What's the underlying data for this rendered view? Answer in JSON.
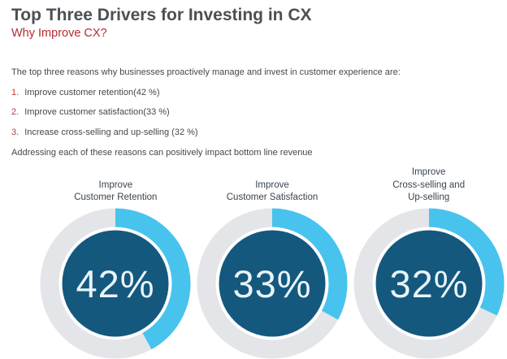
{
  "header": {
    "title": "Top Three Drivers for Investing in CX",
    "subtitle": "Why Improve CX?"
  },
  "content": {
    "intro": "The top three reasons why businesses proactively manage and invest in customer experience are:",
    "reasons": [
      {
        "num": "1.",
        "text": "Improve customer retention(42 %)"
      },
      {
        "num": "2.",
        "text": "Improve customer satisfaction(33 %)"
      },
      {
        "num": "3.",
        "text": "Increase cross-selling and up-selling (32 %)"
      }
    ],
    "closing": "Addressing each of these reasons can positively impact bottom line revenue"
  },
  "chart_data": {
    "type": "pie",
    "subtype": "donut",
    "unit": "%",
    "start_angle_deg": 0,
    "direction": "clockwise",
    "donuts": [
      {
        "label": "Improve Customer Retention",
        "label_lines": [
          "Improve",
          "Customer Retention"
        ],
        "value": 42,
        "display": "42%"
      },
      {
        "label": "Improve Customer Satisfaction",
        "label_lines": [
          "Improve",
          "Customer Satisfaction"
        ],
        "value": 33,
        "display": "33%"
      },
      {
        "label": "Improve Cross-selling and Up-selling",
        "label_lines": [
          "Improve",
          "Cross-selling and",
          "Up-selling"
        ],
        "value": 32,
        "display": "32%"
      }
    ],
    "colors": {
      "arc": "#47c3ee",
      "track": "#e3e5e8",
      "center": "#14587e",
      "percent_text": "#e9f4f9"
    }
  },
  "theme": {
    "title_color": "#4b5055",
    "accent_red": "#b52a31",
    "body_text_color": "#43474c",
    "donut_label_color": "#39444e"
  }
}
